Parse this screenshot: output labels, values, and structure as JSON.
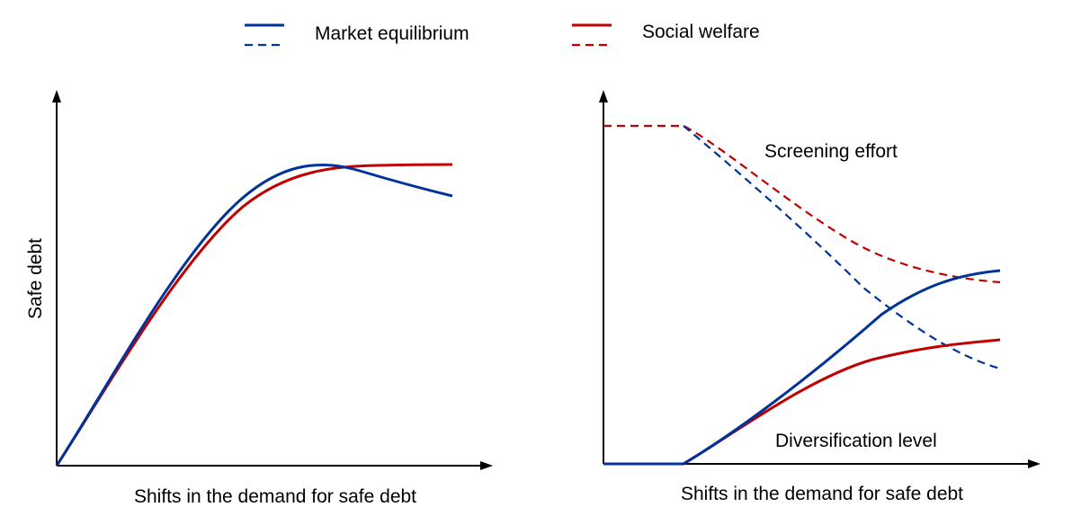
{
  "legend": {
    "items": [
      {
        "label": "Market equilibrium"
      },
      {
        "label": "Social welfare"
      }
    ]
  },
  "left_panel": {
    "y_label": "Safe debt",
    "x_label": "Shifts in the demand for safe debt"
  },
  "right_panel": {
    "annotations": [
      "Screening effort",
      "Diversification level"
    ],
    "x_label": "Shifts in the demand for safe debt"
  }
}
